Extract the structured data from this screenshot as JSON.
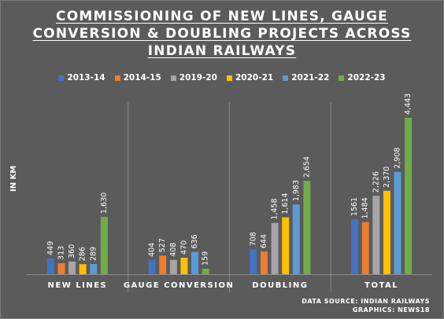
{
  "title_lines": [
    "COMMISSIONING OF NEW LINES, GAUGE",
    "CONVERSION & DOUBLING PROJECTS ACROSS",
    "INDIAN RAILWAYS"
  ],
  "source_line1": "DATA SOURCE: INDIAN RAILWAYS",
  "source_line2": "GRAPHICS: NEWS18",
  "chart_data": {
    "type": "bar",
    "title": "COMMISSIONING OF NEW LINES, GAUGE CONVERSION & DOUBLING PROJECTS ACROSS INDIAN RAILWAYS",
    "ylabel": "IN KM",
    "xlabel": "",
    "categories": [
      "NEW LINES",
      "GAUGE CONVERSION",
      "DOUBLING",
      "TOTAL"
    ],
    "series": [
      {
        "name": "2013-14",
        "color": "#4472c4",
        "values": [
          449,
          404,
          708,
          1561
        ],
        "labels": [
          "449",
          "404",
          "708",
          "1561"
        ]
      },
      {
        "name": "2014-15",
        "color": "#ed7d31",
        "values": [
          313,
          527,
          644,
          1484
        ],
        "labels": [
          "313",
          "527",
          "644",
          "1,484"
        ]
      },
      {
        "name": "2019-20",
        "color": "#a5a5a5",
        "values": [
          360,
          408,
          1458,
          2226
        ],
        "labels": [
          "360",
          "408",
          "1,458",
          "2,226"
        ]
      },
      {
        "name": "2020-21",
        "color": "#ffc000",
        "values": [
          286,
          470,
          1614,
          2370
        ],
        "labels": [
          "286",
          "470",
          "1,614",
          "2,370"
        ]
      },
      {
        "name": "2021-22",
        "color": "#5b9bd5",
        "values": [
          289,
          636,
          1983,
          2908
        ],
        "labels": [
          "289",
          "636",
          "1,983",
          "2,908"
        ]
      },
      {
        "name": "2022-23",
        "color": "#70ad47",
        "values": [
          1630,
          159,
          2654,
          4443
        ],
        "labels": [
          "1,630",
          "159",
          "2,654",
          "4,443"
        ]
      }
    ],
    "ylim": [
      0,
      4443
    ],
    "legend": "top",
    "grid": false
  }
}
